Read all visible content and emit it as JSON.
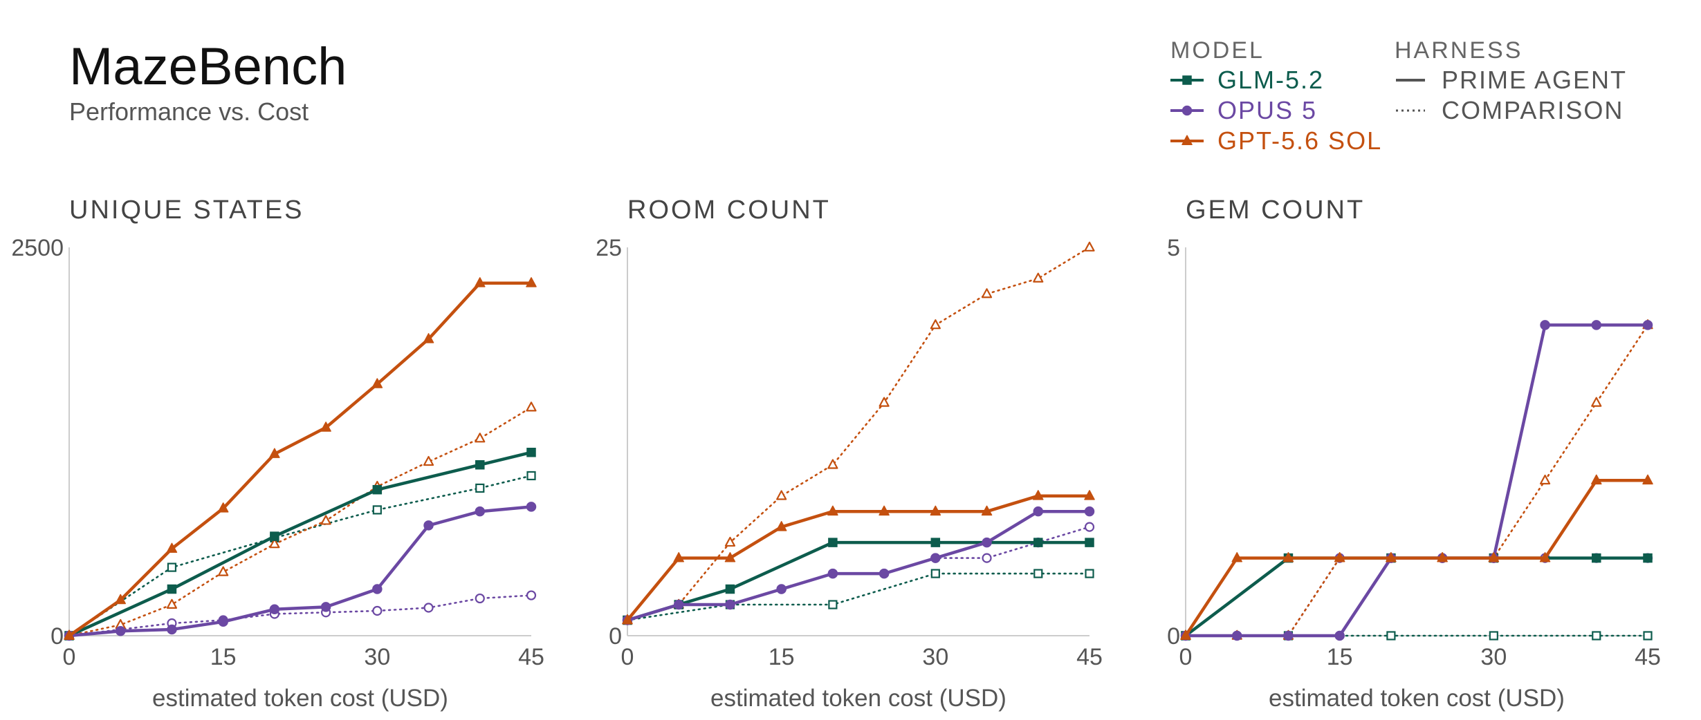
{
  "header": {
    "title": "MazeBench",
    "subtitle": "Performance vs. Cost"
  },
  "legend": {
    "model_title": "MODEL",
    "harness_title": "HARNESS",
    "models": [
      {
        "label": "GLM-5.2",
        "color": "#0d5c4d",
        "marker": "square"
      },
      {
        "label": "OPUS 5",
        "color": "#6b48a3",
        "marker": "circle"
      },
      {
        "label": "GPT-5.6 SOL",
        "color": "#c4500f",
        "marker": "triangle"
      }
    ],
    "harnesses": [
      {
        "label": "PRIME AGENT",
        "style": "solid"
      },
      {
        "label": "COMPARISON",
        "style": "dotted"
      }
    ]
  },
  "chart_data": [
    {
      "type": "line",
      "title": "UNIQUE STATES",
      "xlabel": "estimated token cost (USD)",
      "ylabel": "",
      "xlim": [
        0,
        45
      ],
      "ylim": [
        0,
        2500
      ],
      "xticks": [
        "0",
        "15",
        "30",
        "45"
      ],
      "yticks": [
        "0",
        "2500"
      ],
      "series": [
        {
          "model": "GLM-5.2",
          "harness": "PRIME AGENT",
          "points": [
            [
              0,
              0
            ],
            [
              10,
              300
            ],
            [
              20,
              640
            ],
            [
              30,
              940
            ],
            [
              40,
              1100
            ],
            [
              45,
              1180
            ]
          ]
        },
        {
          "model": "GLM-5.2",
          "harness": "COMPARISON",
          "points": [
            [
              0,
              0
            ],
            [
              10,
              440
            ],
            [
              20,
              630
            ],
            [
              30,
              810
            ],
            [
              40,
              950
            ],
            [
              45,
              1030
            ]
          ]
        },
        {
          "model": "OPUS 5",
          "harness": "PRIME AGENT",
          "points": [
            [
              0,
              0
            ],
            [
              5,
              30
            ],
            [
              10,
              40
            ],
            [
              15,
              90
            ],
            [
              20,
              170
            ],
            [
              25,
              185
            ],
            [
              30,
              300
            ],
            [
              35,
              710
            ],
            [
              40,
              800
            ],
            [
              45,
              830
            ]
          ]
        },
        {
          "model": "OPUS 5",
          "harness": "COMPARISON",
          "points": [
            [
              0,
              0
            ],
            [
              5,
              40
            ],
            [
              10,
              80
            ],
            [
              15,
              100
            ],
            [
              20,
              140
            ],
            [
              25,
              150
            ],
            [
              30,
              160
            ],
            [
              35,
              180
            ],
            [
              40,
              240
            ],
            [
              45,
              260
            ]
          ]
        },
        {
          "model": "GPT-5.6 SOL",
          "harness": "PRIME AGENT",
          "points": [
            [
              0,
              0
            ],
            [
              5,
              230
            ],
            [
              10,
              560
            ],
            [
              15,
              820
            ],
            [
              20,
              1170
            ],
            [
              25,
              1340
            ],
            [
              30,
              1620
            ],
            [
              35,
              1910
            ],
            [
              40,
              2270
            ],
            [
              45,
              2270
            ]
          ]
        },
        {
          "model": "GPT-5.6 SOL",
          "harness": "COMPARISON",
          "points": [
            [
              0,
              0
            ],
            [
              5,
              70
            ],
            [
              10,
              200
            ],
            [
              15,
              410
            ],
            [
              20,
              590
            ],
            [
              25,
              740
            ],
            [
              30,
              960
            ],
            [
              35,
              1120
            ],
            [
              40,
              1270
            ],
            [
              45,
              1470
            ]
          ]
        }
      ]
    },
    {
      "type": "line",
      "title": "ROOM COUNT",
      "xlabel": "estimated token cost (USD)",
      "ylabel": "",
      "xlim": [
        0,
        45
      ],
      "ylim": [
        0,
        25
      ],
      "xticks": [
        "0",
        "15",
        "30",
        "45"
      ],
      "yticks": [
        "0",
        "25"
      ],
      "series": [
        {
          "model": "GLM-5.2",
          "harness": "PRIME AGENT",
          "points": [
            [
              0,
              1
            ],
            [
              5,
              2
            ],
            [
              10,
              3
            ],
            [
              20,
              6
            ],
            [
              30,
              6
            ],
            [
              40,
              6
            ],
            [
              45,
              6
            ]
          ]
        },
        {
          "model": "GLM-5.2",
          "harness": "COMPARISON",
          "points": [
            [
              0,
              1
            ],
            [
              10,
              2
            ],
            [
              20,
              2
            ],
            [
              30,
              4
            ],
            [
              40,
              4
            ],
            [
              45,
              4
            ]
          ]
        },
        {
          "model": "OPUS 5",
          "harness": "PRIME AGENT",
          "points": [
            [
              0,
              1
            ],
            [
              5,
              2
            ],
            [
              10,
              2
            ],
            [
              15,
              3
            ],
            [
              20,
              4
            ],
            [
              25,
              4
            ],
            [
              30,
              5
            ],
            [
              35,
              6
            ],
            [
              40,
              8
            ],
            [
              45,
              8
            ]
          ]
        },
        {
          "model": "OPUS 5",
          "harness": "COMPARISON",
          "points": [
            [
              0,
              1
            ],
            [
              5,
              2
            ],
            [
              10,
              2
            ],
            [
              15,
              3
            ],
            [
              20,
              4
            ],
            [
              25,
              4
            ],
            [
              30,
              5
            ],
            [
              35,
              5
            ],
            [
              40,
              6
            ],
            [
              45,
              7
            ]
          ]
        },
        {
          "model": "GPT-5.6 SOL",
          "harness": "PRIME AGENT",
          "points": [
            [
              0,
              1
            ],
            [
              5,
              5
            ],
            [
              10,
              5
            ],
            [
              15,
              7
            ],
            [
              20,
              8
            ],
            [
              25,
              8
            ],
            [
              30,
              8
            ],
            [
              35,
              8
            ],
            [
              40,
              9
            ],
            [
              45,
              9
            ]
          ]
        },
        {
          "model": "GPT-5.6 SOL",
          "harness": "COMPARISON",
          "points": [
            [
              0,
              1
            ],
            [
              5,
              2
            ],
            [
              10,
              6
            ],
            [
              15,
              9
            ],
            [
              20,
              11
            ],
            [
              25,
              15
            ],
            [
              30,
              20
            ],
            [
              35,
              22
            ],
            [
              40,
              23
            ],
            [
              45,
              25
            ]
          ]
        }
      ]
    },
    {
      "type": "line",
      "title": "GEM COUNT",
      "xlabel": "estimated token cost (USD)",
      "ylabel": "",
      "xlim": [
        0,
        45
      ],
      "ylim": [
        0,
        5
      ],
      "xticks": [
        "0",
        "15",
        "30",
        "45"
      ],
      "yticks": [
        "0",
        "5"
      ],
      "series": [
        {
          "model": "GLM-5.2",
          "harness": "PRIME AGENT",
          "points": [
            [
              0,
              0
            ],
            [
              10,
              1
            ],
            [
              20,
              1
            ],
            [
              30,
              1
            ],
            [
              40,
              1
            ],
            [
              45,
              1
            ]
          ]
        },
        {
          "model": "GLM-5.2",
          "harness": "COMPARISON",
          "points": [
            [
              0,
              0
            ],
            [
              10,
              0
            ],
            [
              20,
              0
            ],
            [
              30,
              0
            ],
            [
              40,
              0
            ],
            [
              45,
              0
            ]
          ]
        },
        {
          "model": "OPUS 5",
          "harness": "PRIME AGENT",
          "points": [
            [
              0,
              0
            ],
            [
              5,
              0
            ],
            [
              10,
              0
            ],
            [
              15,
              0
            ],
            [
              20,
              1
            ],
            [
              25,
              1
            ],
            [
              30,
              1
            ],
            [
              35,
              4
            ],
            [
              40,
              4
            ],
            [
              45,
              4
            ]
          ]
        },
        {
          "model": "OPUS 5",
          "harness": "COMPARISON",
          "points": [
            [
              0,
              0
            ],
            [
              5,
              0
            ],
            [
              10,
              0
            ],
            [
              15,
              1
            ],
            [
              20,
              1
            ],
            [
              25,
              1
            ],
            [
              30,
              1
            ],
            [
              35,
              1
            ],
            [
              40,
              1
            ],
            [
              45,
              1
            ]
          ]
        },
        {
          "model": "GPT-5.6 SOL",
          "harness": "PRIME AGENT",
          "points": [
            [
              0,
              0
            ],
            [
              5,
              1
            ],
            [
              10,
              1
            ],
            [
              15,
              1
            ],
            [
              20,
              1
            ],
            [
              25,
              1
            ],
            [
              30,
              1
            ],
            [
              35,
              1
            ],
            [
              40,
              2
            ],
            [
              45,
              2
            ]
          ]
        },
        {
          "model": "GPT-5.6 SOL",
          "harness": "COMPARISON",
          "points": [
            [
              0,
              0
            ],
            [
              5,
              0
            ],
            [
              10,
              0
            ],
            [
              15,
              1
            ],
            [
              20,
              1
            ],
            [
              25,
              1
            ],
            [
              30,
              1
            ],
            [
              35,
              2
            ],
            [
              40,
              3
            ],
            [
              45,
              4
            ]
          ]
        }
      ]
    }
  ]
}
